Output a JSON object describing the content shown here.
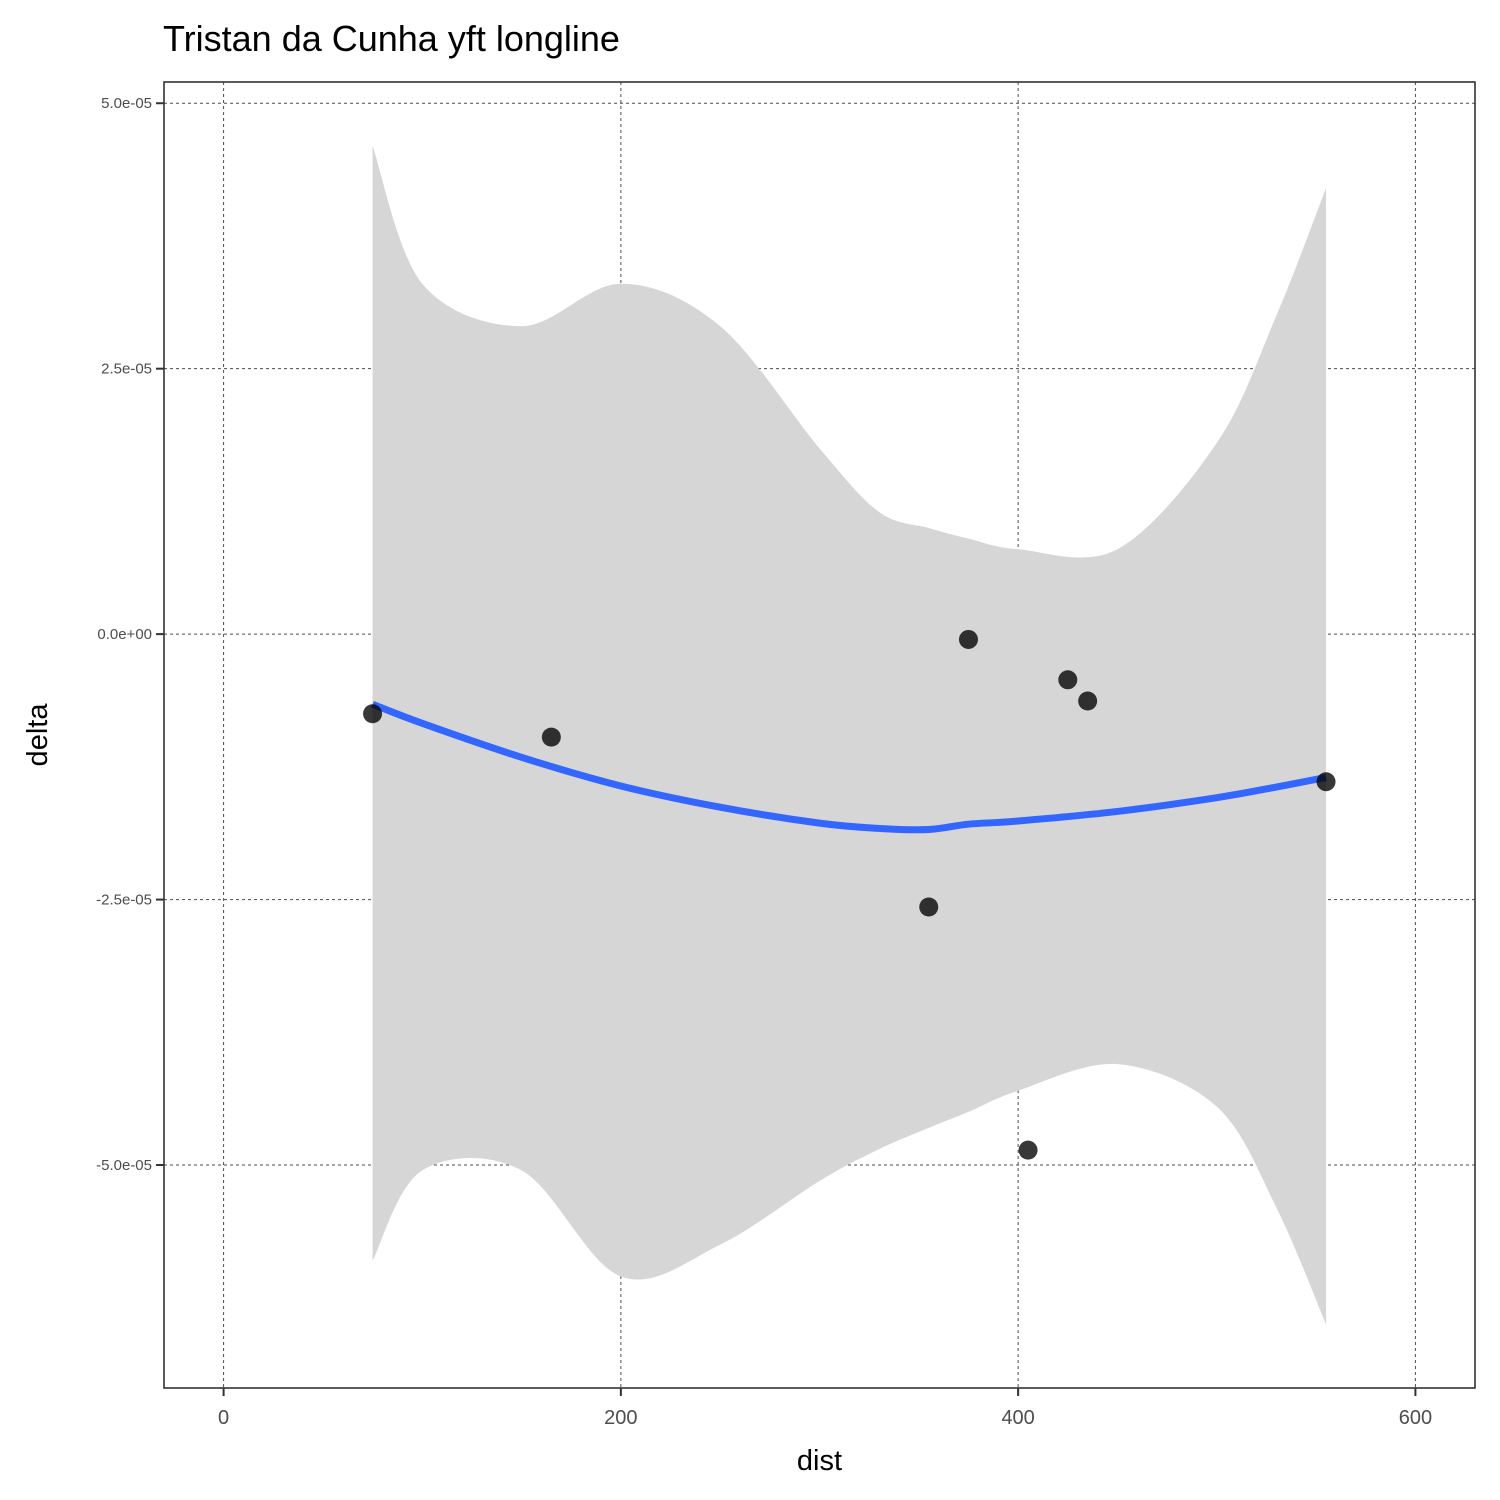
{
  "chart_data": {
    "type": "scatter",
    "title": "Tristan da Cunha yft longline",
    "xlabel": "dist",
    "ylabel": "delta",
    "xlim": [
      -30,
      630
    ],
    "ylim": [
      -7.1e-05,
      5.2e-05
    ],
    "x_ticks": [
      0,
      200,
      400,
      600
    ],
    "x_tick_labels": [
      "0",
      "200",
      "400",
      "600"
    ],
    "y_ticks": [
      -5e-05,
      -2.5e-05,
      0,
      2.5e-05,
      5e-05
    ],
    "y_tick_labels": [
      "-5.0e-05",
      "-2.5e-05",
      "0.0e+00",
      "2.5e-05",
      "5.0e-05"
    ],
    "grid": true,
    "points": [
      {
        "x": 75,
        "y": -7.5e-06
      },
      {
        "x": 165,
        "y": -9.7e-06
      },
      {
        "x": 355,
        "y": -2.57e-05
      },
      {
        "x": 375,
        "y": -5e-07
      },
      {
        "x": 405,
        "y": -4.86e-05
      },
      {
        "x": 425,
        "y": -4.3e-06
      },
      {
        "x": 435,
        "y": -6.3e-06
      },
      {
        "x": 555,
        "y": -1.39e-05
      }
    ],
    "smooth": {
      "color": "#3366ff",
      "band_color": "#d6d6d6",
      "x": [
        75,
        100,
        150,
        200,
        250,
        300,
        330,
        355,
        375,
        400,
        450,
        500,
        530,
        555
      ],
      "y": [
        -6.6e-06,
        -8.4e-06,
        -1.16e-05,
        -1.43e-05,
        -1.63e-05,
        -1.78e-05,
        -1.83e-05,
        -1.84e-05,
        -1.79e-05,
        -1.76e-05,
        -1.67e-05,
        -1.54e-05,
        -1.44e-05,
        -1.35e-05
      ],
      "upper": [
        4.6e-05,
        3.3e-05,
        2.9e-05,
        3.3e-05,
        2.9e-05,
        1.75e-05,
        1.15e-05,
        1e-05,
        9e-06,
        8e-06,
        8e-06,
        1.8e-05,
        3e-05,
        4.2e-05
      ],
      "lower": [
        -5.9e-05,
        -5.05e-05,
        -5.05e-05,
        -6.05e-05,
        -5.75e-05,
        -5.15e-05,
        -4.85e-05,
        -4.65e-05,
        -4.5e-05,
        -4.3e-05,
        -4.05e-05,
        -4.45e-05,
        -5.4e-05,
        -6.5e-05
      ]
    }
  }
}
